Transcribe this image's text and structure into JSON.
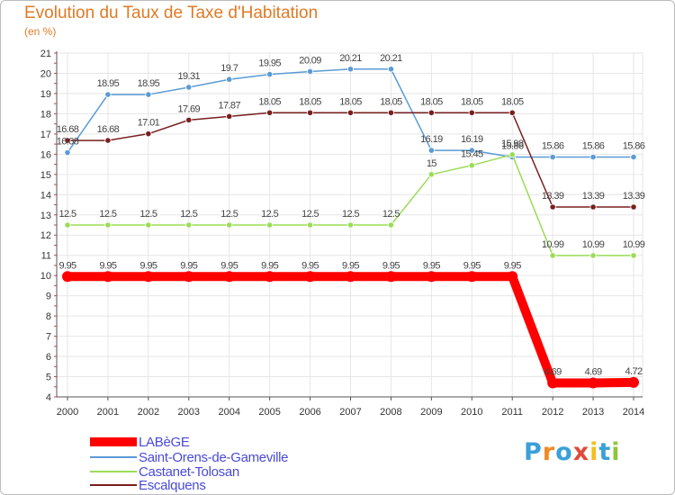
{
  "chart_data": {
    "type": "line",
    "title": "Evolution du Taux de Taxe d'Habitation",
    "unit_label": "(en %)",
    "categories": [
      "2000",
      "2001",
      "2002",
      "2003",
      "2004",
      "2005",
      "2006",
      "2007",
      "2008",
      "2009",
      "2010",
      "2011",
      "2012",
      "2013",
      "2014"
    ],
    "y_ticks": [
      4,
      5,
      6,
      7,
      8,
      9,
      10,
      11,
      12,
      13,
      14,
      15,
      16,
      17,
      18,
      19,
      20,
      21
    ],
    "ylim": [
      4,
      21
    ],
    "series": [
      {
        "name": "LABèGE",
        "color": "#ff0000",
        "values": [
          9.95,
          9.95,
          9.95,
          9.95,
          9.95,
          9.95,
          9.95,
          9.95,
          9.95,
          9.95,
          9.95,
          9.95,
          4.69,
          4.69,
          4.72
        ],
        "labels": [
          "9.95",
          "9.95",
          "9.95",
          "9.95",
          "9.95",
          "9.95",
          "9.95",
          "9.95",
          "9.95",
          "9.95",
          "9.95",
          "9.95",
          "4.69",
          "4.69",
          "4.72"
        ]
      },
      {
        "name": "Saint-Orens-de-Gameville",
        "color": "#5b9bd5",
        "values": [
          16.08,
          18.95,
          18.95,
          19.31,
          19.7,
          19.95,
          20.09,
          20.21,
          20.21,
          16.19,
          16.19,
          15.86,
          15.86,
          15.86,
          15.86
        ],
        "labels": [
          "16.08",
          "18.95",
          "18.95",
          "19.31",
          "19.7",
          "19.95",
          "20.09",
          "20.21",
          "20.21",
          "16.19",
          "16.19",
          "15.86",
          "15.86",
          "15.86",
          "15.86"
        ]
      },
      {
        "name": "Castanet-Tolosan",
        "color": "#99dd55",
        "values": [
          12.5,
          12.5,
          12.5,
          12.5,
          12.5,
          12.5,
          12.5,
          12.5,
          12.5,
          15,
          15.45,
          15.98,
          10.99,
          10.99,
          10.99
        ],
        "labels": [
          "12.5",
          "12.5",
          "12.5",
          "12.5",
          "12.5",
          "12.5",
          "12.5",
          "12.5",
          "12.5",
          "15",
          "15.45",
          "15.98",
          "10.99",
          "10.99",
          "10.99"
        ]
      },
      {
        "name": "Escalquens",
        "color": "#7a1f1f",
        "values": [
          16.68,
          16.68,
          17.01,
          17.69,
          17.87,
          18.05,
          18.05,
          18.05,
          18.05,
          18.05,
          18.05,
          18.05,
          13.39,
          13.39,
          13.39
        ],
        "labels": [
          "16.68",
          "16.68",
          "17.01",
          "17.69",
          "17.87",
          "18.05",
          "18.05",
          "18.05",
          "18.05",
          "18.05",
          "18.05",
          "18.05",
          "13.39",
          "13.39",
          "13.39"
        ]
      }
    ]
  },
  "legend": [
    "LABèGE",
    "Saint-Orens-de-Gameville",
    "Castanet-Tolosan",
    "Escalquens"
  ],
  "logo": {
    "letters": [
      "P",
      "r",
      "o",
      "x",
      "i",
      "t",
      "i"
    ],
    "colors": [
      "#3aa0d8",
      "#f08a24",
      "#3aa0d8",
      "#e04a3a",
      "#f0c020",
      "#3aa0d8",
      "#8dc63f"
    ]
  }
}
